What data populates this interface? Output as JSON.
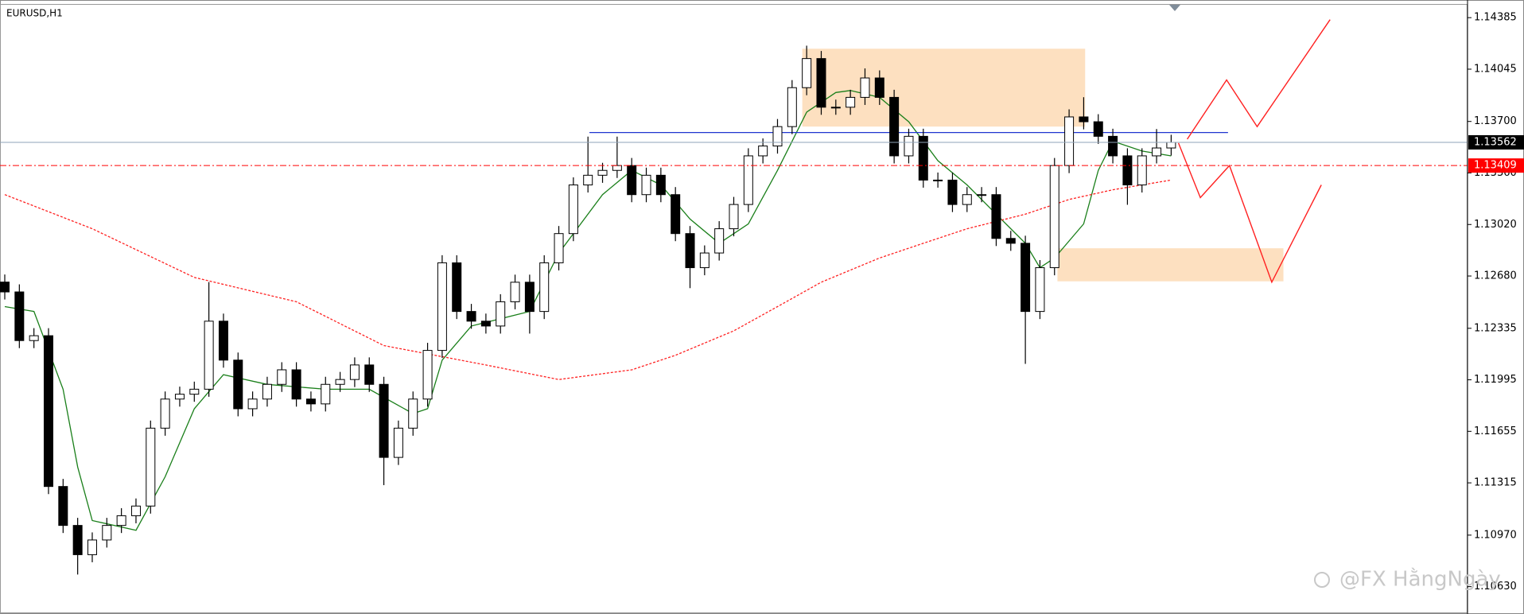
{
  "chart_data": {
    "type": "candlestick",
    "title": "EURUSD,H1",
    "xlim": [
      0,
      100
    ],
    "ylim": [
      1.1046,
      1.1447
    ],
    "yticks": [
      1.14385,
      1.14045,
      {
        "value": 1.137,
        "label": "1.13700"
      },
      {
        "value": 1.1336,
        "label": "1.13360"
      },
      {
        "value": 1.1302,
        "label": "1.13020"
      },
      {
        "value": 1.1268,
        "label": "1.12680"
      },
      1.12335,
      1.11995,
      1.11655,
      1.11315,
      {
        "value": 1.1097,
        "label": "1.10970"
      },
      {
        "value": 1.1063,
        "label": "1.10630"
      }
    ],
    "grid": false,
    "up_color": "#ffffff",
    "down_color": "#000000",
    "wick_color": "#000000",
    "open": [
      1.1264,
      1.12575,
      1.12254,
      1.12286,
      1.11291,
      1.11034,
      1.10841,
      1.10938,
      1.11034,
      1.11098,
      1.11162,
      1.11676,
      1.11868,
      1.119,
      1.11933,
      1.12382,
      1.12125,
      1.11804,
      1.11868,
      1.11965,
      1.12061,
      1.11868,
      1.11836,
      1.11965,
      1.11997,
      1.12093,
      1.11965,
      1.11483,
      1.11676,
      1.11868,
      1.12189,
      1.12767,
      1.12446,
      1.12382,
      1.1235,
      1.1251,
      1.12639,
      1.12446,
      1.12767,
      1.1296,
      1.13281,
      1.13345,
      1.13377,
      1.13409,
      1.13217,
      1.13345,
      1.13217,
      1.1296,
      1.12735,
      1.12832,
      1.12992,
      1.13152,
      1.13473,
      1.13538,
      1.13666,
      1.13923,
      1.14115,
      1.13794,
      1.13794,
      1.13859,
      1.13987,
      1.13859,
      1.13473,
      1.13602,
      1.13313,
      1.13313,
      1.13152,
      1.13217,
      1.13217,
      1.12928,
      1.12896,
      1.12446,
      1.12735,
      1.13409,
      1.1373,
      1.13698,
      1.13602,
      1.13473,
      1.13281,
      1.13473,
      1.13525
    ],
    "high": [
      1.1269,
      1.12625,
      1.12336,
      1.12336,
      1.11341,
      1.11084,
      1.10988,
      1.11084,
      1.11148,
      1.11212,
      1.11726,
      1.11918,
      1.1195,
      1.11983,
      1.1264,
      1.12432,
      1.12175,
      1.11918,
      1.12015,
      1.12111,
      1.12111,
      1.11918,
      1.12015,
      1.12047,
      1.12143,
      1.12143,
      1.12015,
      1.11726,
      1.11918,
      1.12239,
      1.12817,
      1.12817,
      1.12496,
      1.12432,
      1.1256,
      1.12689,
      1.12689,
      1.12817,
      1.1301,
      1.13331,
      1.136,
      1.13427,
      1.136,
      1.13459,
      1.13395,
      1.13395,
      1.13267,
      1.1301,
      1.12882,
      1.13042,
      1.13202,
      1.13523,
      1.13588,
      1.13716,
      1.13973,
      1.142,
      1.14165,
      1.13844,
      1.13909,
      1.1405,
      1.14037,
      1.13909,
      1.13652,
      1.13652,
      1.13363,
      1.13363,
      1.13267,
      1.13267,
      1.13267,
      1.12978,
      1.12946,
      1.12785,
      1.13459,
      1.1378,
      1.1386,
      1.13748,
      1.13652,
      1.13523,
      1.13523,
      1.1365,
      1.13612
    ],
    "low": [
      1.12525,
      1.12204,
      1.12204,
      1.11241,
      1.10984,
      1.1071,
      1.10791,
      1.10888,
      1.10984,
      1.11048,
      1.11112,
      1.11626,
      1.11818,
      1.1185,
      1.11883,
      1.12075,
      1.11754,
      1.11754,
      1.11818,
      1.11915,
      1.11818,
      1.11786,
      1.11786,
      1.11915,
      1.11947,
      1.11915,
      1.113,
      1.11433,
      1.11626,
      1.11818,
      1.12139,
      1.12396,
      1.12332,
      1.123,
      1.123,
      1.1246,
      1.123,
      1.12396,
      1.12717,
      1.1291,
      1.13231,
      1.13295,
      1.13327,
      1.13167,
      1.13167,
      1.13167,
      1.1291,
      1.126,
      1.12685,
      1.12782,
      1.12942,
      1.13102,
      1.13423,
      1.13488,
      1.13616,
      1.13873,
      1.13744,
      1.13744,
      1.13744,
      1.13809,
      1.13809,
      1.13423,
      1.13423,
      1.13263,
      1.13263,
      1.13102,
      1.13102,
      1.13167,
      1.12878,
      1.12846,
      1.121,
      1.12396,
      1.12685,
      1.13359,
      1.13648,
      1.13552,
      1.13423,
      1.1315,
      1.13231,
      1.13423,
      1.13475
    ],
    "close": [
      1.12575,
      1.12254,
      1.12286,
      1.11291,
      1.11034,
      1.10841,
      1.10938,
      1.11034,
      1.11098,
      1.11162,
      1.11676,
      1.11868,
      1.119,
      1.11933,
      1.12382,
      1.12125,
      1.11804,
      1.11868,
      1.11965,
      1.12061,
      1.11868,
      1.11836,
      1.11965,
      1.11997,
      1.12093,
      1.11965,
      1.11483,
      1.11676,
      1.11868,
      1.12189,
      1.12767,
      1.12446,
      1.12382,
      1.1235,
      1.1251,
      1.12639,
      1.12446,
      1.12767,
      1.1296,
      1.13281,
      1.13345,
      1.13377,
      1.13409,
      1.13217,
      1.13345,
      1.13217,
      1.1296,
      1.12735,
      1.12832,
      1.12992,
      1.13152,
      1.13473,
      1.13538,
      1.13666,
      1.13923,
      1.14115,
      1.13794,
      1.13794,
      1.13859,
      1.13987,
      1.13859,
      1.13473,
      1.13602,
      1.13313,
      1.13313,
      1.13152,
      1.13217,
      1.13217,
      1.12928,
      1.12896,
      1.12446,
      1.12735,
      1.13409,
      1.1373,
      1.13698,
      1.13602,
      1.13473,
      1.13281,
      1.13473,
      1.13525,
      1.13562
    ],
    "moving_averages": [
      {
        "color": "#1a7f1a",
        "dash": false,
        "x": [
          0,
          2,
          4,
          5,
          6,
          9,
          11,
          13,
          15,
          18,
          22,
          25,
          28,
          29,
          30,
          32,
          36,
          38,
          41,
          43,
          45,
          47,
          49,
          51,
          53,
          55,
          57,
          58,
          60,
          62,
          64,
          66,
          68,
          70,
          71,
          72,
          74,
          75,
          76,
          78,
          80
        ],
        "values": [
          1.12478,
          1.12446,
          1.11933,
          1.11419,
          1.11066,
          1.11002,
          1.11355,
          1.11804,
          1.12029,
          1.11965,
          1.11933,
          1.11933,
          1.11772,
          1.11804,
          1.12125,
          1.1235,
          1.12446,
          1.12831,
          1.13217,
          1.13377,
          1.13281,
          1.13056,
          1.12896,
          1.13024,
          1.13377,
          1.13762,
          1.13891,
          1.13904,
          1.13859,
          1.13698,
          1.13441,
          1.13281,
          1.13088,
          1.12896,
          1.12735,
          1.12799,
          1.13024,
          1.13377,
          1.1357,
          1.13505,
          1.13473
        ]
      },
      {
        "color": "#ff2020",
        "dash": true,
        "x": [
          0,
          6,
          13,
          20,
          26,
          33,
          38,
          43,
          46,
          50,
          53,
          56,
          60,
          63,
          66,
          70,
          73,
          76,
          80
        ],
        "values": [
          1.13217,
          1.12992,
          1.12671,
          1.1251,
          1.12221,
          1.12093,
          1.11997,
          1.12061,
          1.12157,
          1.12318,
          1.12478,
          1.12639,
          1.12799,
          1.12896,
          1.12992,
          1.13088,
          1.13185,
          1.13249,
          1.13313
        ]
      }
    ],
    "zones": [
      {
        "color": "#fde0c0",
        "x": [
          54.7,
          74.1
        ],
        "y": [
          1.1418,
          1.13666
        ]
      },
      {
        "color": "#fde0c0",
        "x": [
          72.2,
          87.7
        ],
        "y": [
          1.12863,
          1.12645
        ]
      }
    ],
    "hlines": [
      {
        "color": "#1f35d0",
        "value": 1.13627,
        "x": [
          40.1,
          83.9
        ]
      }
    ],
    "projections": [
      {
        "color": "#ff2020",
        "x": [
          81.1,
          83.8,
          85.9,
          90.9
        ],
        "y": [
          1.13583,
          1.13974,
          1.13666,
          1.14372
        ]
      },
      {
        "color": "#ff2020",
        "x": [
          80.5,
          82.0,
          84.0,
          86.9,
          90.3
        ],
        "y": [
          1.13557,
          1.13197,
          1.13409,
          1.12639,
          1.13281
        ]
      }
    ],
    "price_lines": [
      {
        "value": 1.13562,
        "color": "#8fa3b8",
        "label_bg": "#000000",
        "dash": false
      },
      {
        "value": 1.13409,
        "color": "#ff0000",
        "label_bg": "#ff0000",
        "dash": true
      }
    ],
    "watermark": "@FX HằngNgày"
  }
}
